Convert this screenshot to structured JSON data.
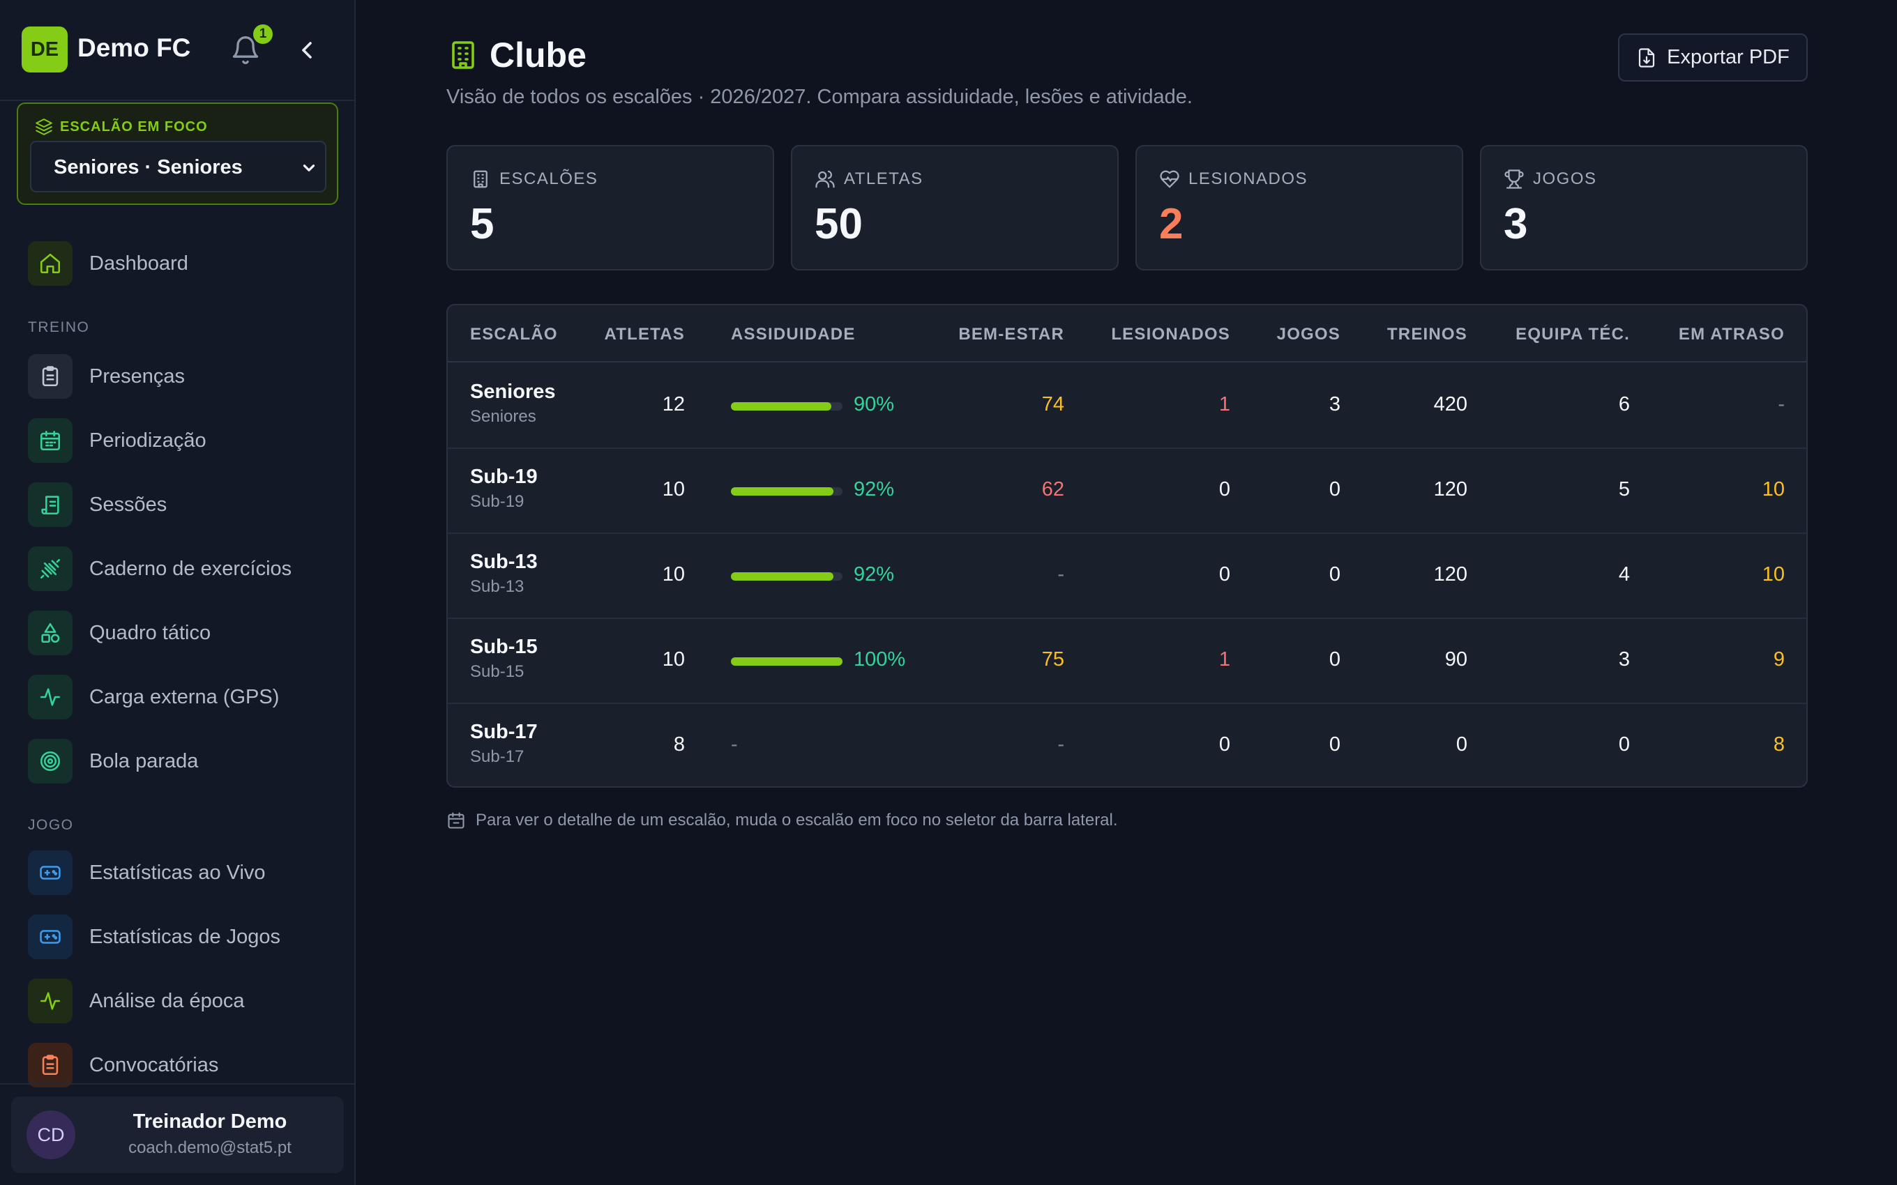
{
  "brand": {
    "initials": "DE",
    "name": "Demo FC",
    "notifications": "1"
  },
  "focus": {
    "label": "ESCALÃO EM FOCO",
    "selected": "Seniores · Seniores"
  },
  "nav": {
    "dashboard": "Dashboard",
    "section_treino": "TREINO",
    "treino": [
      "Presenças",
      "Periodização",
      "Sessões",
      "Caderno de exercícios",
      "Quadro tático",
      "Carga externa (GPS)",
      "Bola parada"
    ],
    "section_jogo": "JOGO",
    "jogo": [
      "Estatísticas ao Vivo",
      "Estatísticas de Jogos",
      "Análise da época",
      "Convocatórias"
    ]
  },
  "user": {
    "initials": "CD",
    "name": "Treinador Demo",
    "email": "coach.demo@stat5.pt"
  },
  "page": {
    "title": "Clube",
    "subtitle": "Visão de todos os escalões · 2026/2027. Compara assiduidade, lesões e atividade.",
    "export_label": "Exportar PDF"
  },
  "stats": [
    {
      "label": "ESCALÕES",
      "value": "5",
      "icon": "building-icon"
    },
    {
      "label": "ATLETAS",
      "value": "50",
      "icon": "users-icon"
    },
    {
      "label": "LESIONADOS",
      "value": "2",
      "icon": "heart-pulse-icon"
    },
    {
      "label": "JOGOS",
      "value": "3",
      "icon": "trophy-icon"
    }
  ],
  "table": {
    "headers": [
      "ESCALÃO",
      "ATLETAS",
      "ASSIDUIDADE",
      "BEM-ESTAR",
      "LESIONADOS",
      "JOGOS",
      "TREINOS",
      "EQUIPA TÉC.",
      "EM ATRASO"
    ],
    "rows": [
      {
        "name": "Seniores",
        "sub": "Seniores",
        "atletas": "12",
        "assiduidade": 0.9,
        "assiduidade_label": "90%",
        "bem_estar": "74",
        "lesionados": "1",
        "jogos": "3",
        "treinos": "420",
        "equipa": "6",
        "atraso": "-"
      },
      {
        "name": "Sub-19",
        "sub": "Sub-19",
        "atletas": "10",
        "assiduidade": 0.92,
        "assiduidade_label": "92%",
        "bem_estar": "62",
        "lesionados": "0",
        "jogos": "0",
        "treinos": "120",
        "equipa": "5",
        "atraso": "10"
      },
      {
        "name": "Sub-13",
        "sub": "Sub-13",
        "atletas": "10",
        "assiduidade": 0.92,
        "assiduidade_label": "92%",
        "bem_estar": "-",
        "lesionados": "0",
        "jogos": "0",
        "treinos": "120",
        "equipa": "4",
        "atraso": "10"
      },
      {
        "name": "Sub-15",
        "sub": "Sub-15",
        "atletas": "10",
        "assiduidade": 1.0,
        "assiduidade_label": "100%",
        "bem_estar": "75",
        "lesionados": "1",
        "jogos": "0",
        "treinos": "90",
        "equipa": "3",
        "atraso": "9"
      },
      {
        "name": "Sub-17",
        "sub": "Sub-17",
        "atletas": "8",
        "assiduidade": null,
        "assiduidade_label": "-",
        "bem_estar": "-",
        "lesionados": "0",
        "jogos": "0",
        "treinos": "0",
        "equipa": "0",
        "atraso": "8"
      }
    ]
  },
  "note": "Para ver o detalhe de um escalão, muda o escalão em foco no seletor da barra lateral.",
  "colors": {
    "accent": "#84cc16",
    "good": "#34d399",
    "warn": "#fbbf24",
    "bad": "#f87171",
    "background": "#0f1320"
  }
}
